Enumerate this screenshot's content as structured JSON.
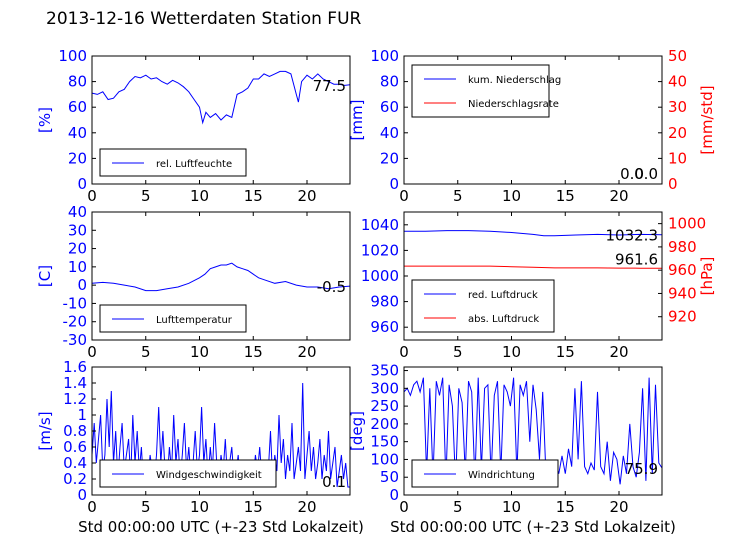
{
  "title": "2013-12-16 Wetterdaten Station FUR",
  "colors": {
    "primary": "#0000ff",
    "secondary": "#ff0000",
    "axis": "#000000"
  },
  "chart_data": [
    {
      "id": "humidity",
      "type": "line",
      "ylabel": "[%]",
      "xlim": [
        0,
        24
      ],
      "ylim": [
        0,
        100
      ],
      "yticks": [
        0,
        20,
        40,
        60,
        80,
        100
      ],
      "xticks": [
        0,
        5,
        10,
        15,
        20
      ],
      "legend": [
        "rel. Luftfeuchte"
      ],
      "last_value_label": "77.5",
      "series": [
        {
          "name": "rel. Luftfeuchte",
          "color": "#0000ff",
          "x": [
            0,
            0.5,
            1,
            1.5,
            2,
            2.5,
            3,
            3.5,
            4,
            4.5,
            5,
            5.5,
            6,
            6.5,
            7,
            7.5,
            8,
            8.5,
            9,
            9.5,
            10,
            10.3,
            10.6,
            11,
            11.5,
            12,
            12.5,
            13,
            13.5,
            14,
            14.5,
            15,
            15.5,
            16,
            16.5,
            17,
            17.5,
            18,
            18.5,
            19,
            19.2,
            19.5,
            20,
            20.5,
            21,
            21.5,
            22,
            22.5,
            23,
            23.5,
            24
          ],
          "y": [
            71,
            70,
            72,
            66,
            67,
            72,
            74,
            80,
            84,
            83,
            85,
            82,
            83,
            80,
            78,
            81,
            79,
            76,
            72,
            66,
            60,
            48,
            56,
            52,
            55,
            50,
            54,
            52,
            70,
            72,
            75,
            82,
            82,
            86,
            84,
            86,
            88,
            88,
            86,
            70,
            64,
            80,
            85,
            82,
            86,
            82,
            80,
            78,
            78,
            77,
            77.5
          ]
        }
      ]
    },
    {
      "id": "precip",
      "type": "line",
      "ylabel": "[mm]",
      "ylabel2": "[mm/std]",
      "xlim": [
        0,
        24
      ],
      "ylim": [
        0,
        100
      ],
      "ylim2": [
        0,
        50
      ],
      "yticks": [
        0,
        20,
        40,
        60,
        80,
        100
      ],
      "yticks2": [
        0,
        10,
        20,
        30,
        40,
        50
      ],
      "xticks": [
        0,
        5,
        10,
        15,
        20
      ],
      "legend": [
        "kum. Niederschlag",
        "Niederschlagsrate"
      ],
      "last_value_label": "0.0",
      "last_value_label2": "0.0",
      "series": [
        {
          "name": "kum. Niederschlag",
          "color": "#0000ff",
          "x": [
            0,
            24
          ],
          "y": [
            0,
            0
          ]
        },
        {
          "name": "Niederschlagsrate",
          "color": "#ff0000",
          "x": [
            0,
            24
          ],
          "y": [
            0,
            0
          ],
          "axis": 2
        }
      ]
    },
    {
      "id": "temperature",
      "type": "line",
      "ylabel": "[C]",
      "xlim": [
        0,
        24
      ],
      "ylim": [
        -30,
        40
      ],
      "yticks": [
        -30,
        -20,
        -10,
        0,
        10,
        20,
        30,
        40
      ],
      "xticks": [
        0,
        5,
        10,
        15,
        20
      ],
      "legend": [
        "Lufttemperatur"
      ],
      "last_value_label": "-0.5",
      "series": [
        {
          "name": "Lufttemperatur",
          "color": "#0000ff",
          "x": [
            0,
            1,
            2,
            3,
            4,
            5,
            6,
            7,
            8,
            9,
            10,
            10.5,
            11,
            11.5,
            12,
            12.5,
            13,
            13.5,
            14,
            14.5,
            15,
            15.5,
            16,
            17,
            18,
            19,
            20,
            21,
            22,
            23,
            24
          ],
          "y": [
            1,
            1.5,
            1,
            0,
            -1,
            -3,
            -3,
            -2,
            -1,
            1,
            4,
            6,
            9,
            10,
            11,
            11,
            12,
            10,
            9,
            8,
            6,
            4,
            3,
            1,
            2,
            0,
            -1,
            -1,
            -2,
            -1,
            -0.5
          ]
        }
      ]
    },
    {
      "id": "pressure",
      "type": "line",
      "ylabel2": "[hPa]",
      "xlim": [
        0,
        24
      ],
      "ylim": [
        950,
        1050
      ],
      "ylim2": [
        900,
        1010
      ],
      "yticks": [
        960,
        980,
        1000,
        1020,
        1040
      ],
      "yticks2": [
        920,
        940,
        960,
        980,
        1000
      ],
      "xticks": [
        0,
        5,
        10,
        15,
        20
      ],
      "legend": [
        "red. Luftdruck",
        "abs. Luftdruck"
      ],
      "last_value_label": "1032.3",
      "last_value_label2": "961.6",
      "series": [
        {
          "name": "red. Luftdruck",
          "color": "#0000ff",
          "x": [
            0,
            2,
            4,
            6,
            8,
            10,
            12,
            13,
            14,
            16,
            18,
            20,
            22,
            24
          ],
          "y": [
            1035,
            1035,
            1035.5,
            1035.5,
            1035,
            1034,
            1032.5,
            1031.5,
            1031.5,
            1032,
            1032.5,
            1032,
            1032.5,
            1032.3
          ]
        },
        {
          "name": "abs. Luftdruck",
          "color": "#ff0000",
          "axis": 2,
          "x": [
            0,
            2,
            4,
            6,
            8,
            10,
            12,
            14,
            16,
            18,
            20,
            22,
            24
          ],
          "y": [
            963.5,
            963.5,
            963.5,
            963.5,
            963.5,
            963,
            962.5,
            962,
            962,
            962,
            961.8,
            961.7,
            961.6
          ]
        }
      ]
    },
    {
      "id": "windspeed",
      "type": "line",
      "ylabel": "[m/s]",
      "xlim": [
        0,
        24
      ],
      "ylim": [
        0,
        1.6
      ],
      "yticks": [
        0.0,
        0.2,
        0.4,
        0.6,
        0.8,
        1.0,
        1.2,
        1.4,
        1.6
      ],
      "xticks": [
        0,
        5,
        10,
        15,
        20
      ],
      "legend": [
        "Windgeschwindigkeit"
      ],
      "last_value_label": "0.1",
      "series": [
        {
          "name": "Windgeschwindigkeit",
          "color": "#0000ff",
          "x": [
            0,
            0.2,
            0.4,
            0.6,
            0.8,
            1,
            1.2,
            1.4,
            1.6,
            1.8,
            2,
            2.2,
            2.4,
            2.6,
            2.8,
            3,
            3.2,
            3.4,
            3.6,
            3.8,
            4,
            4.2,
            4.4,
            4.6,
            4.8,
            5,
            5.2,
            5.4,
            5.6,
            5.8,
            6,
            6.2,
            6.4,
            6.6,
            6.8,
            7,
            7.2,
            7.4,
            7.6,
            7.8,
            8,
            8.2,
            8.4,
            8.6,
            8.8,
            9,
            9.2,
            9.4,
            9.6,
            9.8,
            10,
            10.2,
            10.4,
            10.6,
            10.8,
            11,
            11.2,
            11.4,
            11.6,
            11.8,
            12,
            12.2,
            12.4,
            12.6,
            12.8,
            13,
            13.2,
            13.4,
            13.6,
            13.8,
            14,
            14.2,
            14.4,
            14.6,
            14.8,
            15,
            15.2,
            15.4,
            15.6,
            15.8,
            16,
            16.2,
            16.4,
            16.6,
            16.8,
            17,
            17.2,
            17.4,
            17.6,
            17.8,
            18,
            18.2,
            18.4,
            18.6,
            18.8,
            19,
            19.2,
            19.4,
            19.6,
            19.8,
            20,
            20.2,
            20.4,
            20.6,
            20.8,
            21,
            21.2,
            21.4,
            21.6,
            21.8,
            22,
            22.2,
            22.4,
            22.6,
            22.8,
            23,
            23.2,
            23.4,
            23.6,
            23.8,
            24
          ],
          "y": [
            0.5,
            0.9,
            0.4,
            0.7,
            1.0,
            0.3,
            0.5,
            1.2,
            0.6,
            1.3,
            0.4,
            0.8,
            0.2,
            0.6,
            0.9,
            0.3,
            0.5,
            0.7,
            0.2,
            1.0,
            0.4,
            0.8,
            0.3,
            0.6,
            0.1,
            0.4,
            0.2,
            0.5,
            0.3,
            0.2,
            0.5,
            1.1,
            0.4,
            0.8,
            0.3,
            0.2,
            0.6,
            0.3,
            1.0,
            0.4,
            0.7,
            0.2,
            0.5,
            0.9,
            0.3,
            0.6,
            0.2,
            0.4,
            0.8,
            0.3,
            0.5,
            1.1,
            0.4,
            0.7,
            0.2,
            0.6,
            0.3,
            0.9,
            0.4,
            0.2,
            0.5,
            0.3,
            0.7,
            0.2,
            0.4,
            0.6,
            0.2,
            0.3,
            0.5,
            0.1,
            0.3,
            0.2,
            0.4,
            0.1,
            0.3,
            0.2,
            0.5,
            0.3,
            0.6,
            0.2,
            0.4,
            0.1,
            0.3,
            0.8,
            0.2,
            0.5,
            0.3,
            1.0,
            0.4,
            0.7,
            0.2,
            0.5,
            0.3,
            0.9,
            0.2,
            0.4,
            0.6,
            0.3,
            1.4,
            0.2,
            0.5,
            0.8,
            0.3,
            0.6,
            0.2,
            0.4,
            0.7,
            0.2,
            0.5,
            0.3,
            0.8,
            0.2,
            0.4,
            0.6,
            0.1,
            0.3,
            0.5,
            0.2,
            0.4,
            0.1,
            0.1
          ]
        }
      ]
    },
    {
      "id": "winddir",
      "type": "line",
      "ylabel": "[deg]",
      "xlim": [
        0,
        24
      ],
      "ylim": [
        0,
        360
      ],
      "yticks": [
        0,
        50,
        100,
        150,
        200,
        250,
        300,
        350
      ],
      "xticks": [
        0,
        5,
        10,
        15,
        20
      ],
      "legend": [
        "Windrichtung"
      ],
      "last_value_label": "75.9",
      "series": [
        {
          "name": "Windrichtung",
          "color": "#0000ff",
          "x": [
            0,
            0.3,
            0.6,
            0.9,
            1.2,
            1.5,
            1.8,
            2.1,
            2.4,
            2.7,
            3,
            3.3,
            3.6,
            3.9,
            4.2,
            4.5,
            4.8,
            5.1,
            5.4,
            5.7,
            6,
            6.3,
            6.6,
            6.9,
            7.2,
            7.5,
            7.8,
            8.1,
            8.4,
            8.7,
            9,
            9.3,
            9.6,
            9.9,
            10.2,
            10.5,
            10.8,
            11.1,
            11.4,
            11.7,
            12,
            12.3,
            12.6,
            12.9,
            13.2,
            13.5,
            13.8,
            14.1,
            14.4,
            14.7,
            15,
            15.3,
            15.6,
            15.9,
            16.2,
            16.5,
            16.8,
            17.1,
            17.4,
            17.7,
            18,
            18.3,
            18.6,
            18.9,
            19.2,
            19.5,
            19.8,
            20.1,
            20.4,
            20.7,
            21,
            21.3,
            21.6,
            21.9,
            22.2,
            22.5,
            22.8,
            23.1,
            23.4,
            23.7,
            24
          ],
          "y": [
            290,
            300,
            280,
            310,
            320,
            290,
            330,
            60,
            300,
            50,
            320,
            280,
            330,
            40,
            310,
            250,
            30,
            300,
            260,
            60,
            320,
            290,
            40,
            330,
            70,
            300,
            310,
            50,
            280,
            320,
            60,
            310,
            290,
            250,
            330,
            60,
            310,
            280,
            320,
            150,
            310,
            240,
            100,
            290,
            60,
            80,
            40,
            90,
            60,
            110,
            60,
            130,
            80,
            300,
            100,
            320,
            80,
            60,
            90,
            70,
            290,
            80,
            60,
            150,
            40,
            120,
            100,
            30,
            110,
            60,
            200,
            80,
            50,
            120,
            300,
            40,
            330,
            60,
            310,
            90,
            76
          ]
        }
      ]
    }
  ],
  "xlabel": "Std 00:00:00 UTC (+-23 Std Lokalzeit)"
}
